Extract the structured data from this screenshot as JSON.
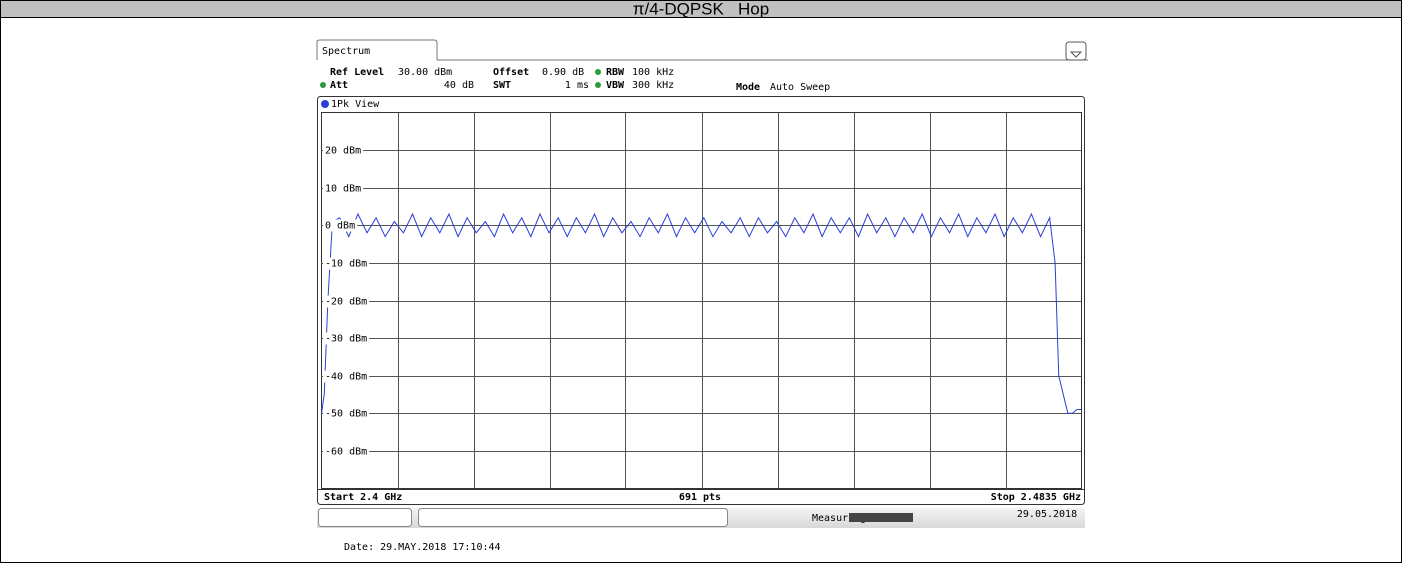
{
  "header": {
    "title": "π/4-DQPSK _Hop"
  },
  "instrument": {
    "tab": "Spectrum",
    "ref_level_label": "Ref Level",
    "ref_level": "30.00 dBm",
    "offset_label": "Offset",
    "offset": "0.90 dB",
    "rbw_label": "RBW",
    "rbw": "100 kHz",
    "att_label": "Att",
    "att": "40 dB",
    "swt_label": "SWT",
    "swt": "1 ms",
    "vbw_label": "VBW",
    "vbw": "300 kHz",
    "mode_label": "Mode",
    "mode": "Auto Sweep",
    "view": "1Pk View",
    "start": "Start 2.4 GHz",
    "points": "691 pts",
    "stop": "Stop 2.4835 GHz",
    "status": "Measuring...",
    "status_date": "29.05.2018"
  },
  "footer": {
    "date": "Date: 29.MAY.2018 17:10:44"
  },
  "chart_data": {
    "type": "line",
    "color": "#2a3fd6",
    "grid": true,
    "xlim": [
      2.4,
      2.4835
    ],
    "ylim": [
      -70,
      30
    ],
    "xticks": [
      2.40835,
      2.4167,
      2.42505,
      2.4334,
      2.44175,
      2.4501,
      2.45845,
      2.4668,
      2.47515
    ],
    "yticks": [
      {
        "value": 20,
        "label": "20 dBm"
      },
      {
        "value": 10,
        "label": "10 dBm"
      },
      {
        "value": 0,
        "label": "0 dBm"
      },
      {
        "value": -10,
        "label": "-10 dBm"
      },
      {
        "value": -20,
        "label": "-20 dBm"
      },
      {
        "value": -30,
        "label": "-30 dBm"
      },
      {
        "value": -40,
        "label": "-40 dBm"
      },
      {
        "value": -50,
        "label": "-50 dBm"
      },
      {
        "value": -60,
        "label": "-60 dBm"
      }
    ],
    "x": [
      2.4,
      2.4003,
      2.4007,
      2.4012,
      2.402,
      2.403,
      2.404,
      2.405,
      2.406,
      2.407,
      2.408,
      2.409,
      2.41,
      2.411,
      2.412,
      2.413,
      2.414,
      2.415,
      2.416,
      2.417,
      2.418,
      2.419,
      2.42,
      2.421,
      2.422,
      2.423,
      2.424,
      2.425,
      2.426,
      2.427,
      2.428,
      2.429,
      2.43,
      2.431,
      2.432,
      2.433,
      2.434,
      2.435,
      2.436,
      2.437,
      2.438,
      2.439,
      2.44,
      2.441,
      2.442,
      2.443,
      2.444,
      2.445,
      2.446,
      2.447,
      2.448,
      2.449,
      2.45,
      2.451,
      2.452,
      2.453,
      2.454,
      2.455,
      2.456,
      2.457,
      2.458,
      2.459,
      2.46,
      2.461,
      2.462,
      2.463,
      2.464,
      2.465,
      2.466,
      2.467,
      2.468,
      2.469,
      2.47,
      2.471,
      2.472,
      2.473,
      2.474,
      2.475,
      2.476,
      2.477,
      2.478,
      2.479,
      2.48,
      2.4806,
      2.481,
      2.4815,
      2.482,
      2.4825,
      2.483,
      2.4835
    ],
    "values": [
      -50,
      -45,
      -20,
      1,
      2,
      -3,
      3,
      -2,
      2,
      -3,
      1,
      -2,
      3,
      -3,
      2,
      -2,
      3,
      -3,
      2,
      -2,
      1,
      -3,
      3,
      -2,
      2,
      -3,
      3,
      -2,
      2,
      -3,
      2,
      -2,
      3,
      -3,
      2,
      -2,
      1,
      -3,
      2,
      -2,
      3,
      -3,
      2,
      -2,
      2,
      -3,
      1,
      -2,
      2,
      -3,
      2,
      -2,
      1,
      -3,
      2,
      -2,
      3,
      -3,
      2,
      -2,
      2,
      -3,
      3,
      -2,
      2,
      -3,
      2,
      -2,
      3,
      -3,
      2,
      -2,
      3,
      -3,
      2,
      -2,
      3,
      -3,
      2,
      -2,
      3,
      -3,
      2,
      -10,
      -40,
      -45,
      -50,
      -50,
      -49,
      -49
    ]
  }
}
